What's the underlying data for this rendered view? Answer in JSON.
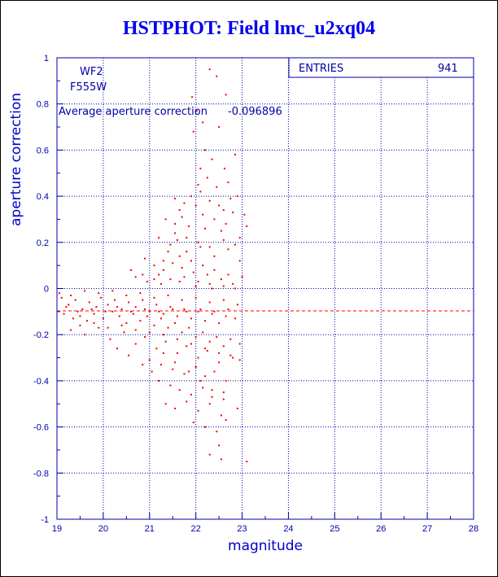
{
  "chart_data": {
    "type": "scatter",
    "title": "HSTPHOT: Field lmc_u2xq04",
    "xlabel": "magnitude",
    "ylabel": "aperture correction",
    "xlim": [
      19,
      28
    ],
    "ylim": [
      -1,
      1
    ],
    "xticks": [
      "19",
      "20",
      "21",
      "22",
      "23",
      "24",
      "25",
      "26",
      "27",
      "28"
    ],
    "yticks": [
      "1",
      "0.8",
      "0.6",
      "0.4",
      "0.2",
      "0",
      "-0.2",
      "-0.4",
      "-0.6",
      "-0.8",
      "-1"
    ],
    "grid": true,
    "annotations": {
      "chip": "WF2",
      "filter": "F555W",
      "average_label": "Average aperture correction",
      "average_value": "-0.096896"
    },
    "stats": {
      "entries_label": "ENTRIES",
      "entries_value": "941"
    },
    "average_line_y": -0.096896,
    "points": [
      [
        22.3,
        0.95
      ],
      [
        22.45,
        0.92
      ],
      [
        22.65,
        0.84
      ],
      [
        21.92,
        0.83
      ],
      [
        22.02,
        0.77
      ],
      [
        22.15,
        0.72
      ],
      [
        21.95,
        0.68
      ],
      [
        22.5,
        0.7
      ],
      [
        22.2,
        0.6
      ],
      [
        22.35,
        0.56
      ],
      [
        22.1,
        0.52
      ],
      [
        22.62,
        0.52
      ],
      [
        22.85,
        0.58
      ],
      [
        22.05,
        0.45
      ],
      [
        22.25,
        0.48
      ],
      [
        22.45,
        0.44
      ],
      [
        22.7,
        0.46
      ],
      [
        22.9,
        0.4
      ],
      [
        21.55,
        0.39
      ],
      [
        21.75,
        0.37
      ],
      [
        22.0,
        0.36
      ],
      [
        22.6,
        0.34
      ],
      [
        22.8,
        0.33
      ],
      [
        23.05,
        0.32
      ],
      [
        21.35,
        0.3
      ],
      [
        21.55,
        0.28
      ],
      [
        21.7,
        0.31
      ],
      [
        21.85,
        0.27
      ],
      [
        22.2,
        0.26
      ],
      [
        22.55,
        0.25
      ],
      [
        22.95,
        0.22
      ],
      [
        23.1,
        0.27
      ],
      [
        21.2,
        0.22
      ],
      [
        21.45,
        0.19
      ],
      [
        21.6,
        0.21
      ],
      [
        21.8,
        0.16
      ],
      [
        22.1,
        0.18
      ],
      [
        22.4,
        0.14
      ],
      [
        22.7,
        0.17
      ],
      [
        22.95,
        0.12
      ],
      [
        23.0,
        0.05
      ],
      [
        20.9,
        0.13
      ],
      [
        21.1,
        0.1
      ],
      [
        21.3,
        0.08
      ],
      [
        21.5,
        0.11
      ],
      [
        21.7,
        0.09
      ],
      [
        21.95,
        0.07
      ],
      [
        22.25,
        0.06
      ],
      [
        22.55,
        0.04
      ],
      [
        22.8,
        0.02
      ],
      [
        20.7,
        0.05
      ],
      [
        20.95,
        0.03
      ],
      [
        21.25,
        0.02
      ],
      [
        21.65,
        0.03
      ],
      [
        22.0,
        0.01
      ],
      [
        22.35,
        0.0
      ],
      [
        19.1,
        -0.04
      ],
      [
        19.25,
        -0.07
      ],
      [
        19.4,
        -0.05
      ],
      [
        19.55,
        -0.09
      ],
      [
        19.7,
        -0.06
      ],
      [
        19.85,
        -0.08
      ],
      [
        19.95,
        -0.04
      ],
      [
        20.1,
        -0.07
      ],
      [
        20.25,
        -0.05
      ],
      [
        20.4,
        -0.09
      ],
      [
        20.55,
        -0.06
      ],
      [
        20.7,
        -0.08
      ],
      [
        20.85,
        -0.05
      ],
      [
        21.0,
        -0.1
      ],
      [
        21.15,
        -0.07
      ],
      [
        21.3,
        -0.11
      ],
      [
        21.45,
        -0.08
      ],
      [
        21.6,
        -0.12
      ],
      [
        21.75,
        -0.09
      ],
      [
        21.9,
        -0.13
      ],
      [
        22.05,
        -0.1
      ],
      [
        22.2,
        -0.14
      ],
      [
        22.35,
        -0.11
      ],
      [
        22.5,
        -0.15
      ],
      [
        22.65,
        -0.12
      ],
      [
        22.85,
        -0.13
      ],
      [
        19.15,
        -0.11
      ],
      [
        19.35,
        -0.13
      ],
      [
        19.5,
        -0.12
      ],
      [
        19.65,
        -0.14
      ],
      [
        19.8,
        -0.11
      ],
      [
        20.0,
        -0.13
      ],
      [
        20.2,
        -0.1
      ],
      [
        20.35,
        -0.12
      ],
      [
        20.5,
        -0.15
      ],
      [
        20.65,
        -0.11
      ],
      [
        20.8,
        -0.14
      ],
      [
        20.95,
        -0.12
      ],
      [
        21.1,
        -0.16
      ],
      [
        21.25,
        -0.13
      ],
      [
        21.4,
        -0.17
      ],
      [
        21.55,
        -0.15
      ],
      [
        21.7,
        -0.19
      ],
      [
        21.85,
        -0.17
      ],
      [
        22.0,
        -0.21
      ],
      [
        22.15,
        -0.19
      ],
      [
        22.3,
        -0.23
      ],
      [
        22.45,
        -0.21
      ],
      [
        22.6,
        -0.25
      ],
      [
        22.75,
        -0.22
      ],
      [
        22.95,
        -0.24
      ],
      [
        19.3,
        -0.18
      ],
      [
        19.6,
        -0.2
      ],
      [
        19.9,
        -0.17
      ],
      [
        20.15,
        -0.22
      ],
      [
        20.45,
        -0.19
      ],
      [
        20.7,
        -0.24
      ],
      [
        20.9,
        -0.21
      ],
      [
        21.15,
        -0.26
      ],
      [
        21.35,
        -0.23
      ],
      [
        21.6,
        -0.28
      ],
      [
        21.8,
        -0.25
      ],
      [
        22.05,
        -0.3
      ],
      [
        22.25,
        -0.27
      ],
      [
        22.5,
        -0.32
      ],
      [
        22.75,
        -0.29
      ],
      [
        22.95,
        -0.31
      ],
      [
        21.0,
        -0.31
      ],
      [
        21.25,
        -0.33
      ],
      [
        21.5,
        -0.35
      ],
      [
        21.75,
        -0.37
      ],
      [
        22.0,
        -0.34
      ],
      [
        22.2,
        -0.38
      ],
      [
        22.4,
        -0.36
      ],
      [
        22.65,
        -0.4
      ],
      [
        21.2,
        -0.4
      ],
      [
        21.45,
        -0.42
      ],
      [
        21.65,
        -0.44
      ],
      [
        21.9,
        -0.46
      ],
      [
        22.15,
        -0.43
      ],
      [
        22.35,
        -0.47
      ],
      [
        22.6,
        -0.45
      ],
      [
        21.35,
        -0.5
      ],
      [
        21.55,
        -0.52
      ],
      [
        21.8,
        -0.49
      ],
      [
        22.05,
        -0.53
      ],
      [
        22.3,
        -0.5
      ],
      [
        22.55,
        -0.55
      ],
      [
        21.95,
        -0.58
      ],
      [
        22.2,
        -0.6
      ],
      [
        22.45,
        -0.62
      ],
      [
        22.65,
        -0.57
      ],
      [
        22.5,
        -0.68
      ],
      [
        22.3,
        -0.72
      ],
      [
        22.55,
        -0.74
      ],
      [
        23.1,
        -0.75
      ],
      [
        19.2,
        -0.08
      ],
      [
        19.45,
        -0.1
      ],
      [
        19.75,
        -0.09
      ],
      [
        20.05,
        -0.1
      ],
      [
        20.3,
        -0.08
      ],
      [
        20.6,
        -0.1
      ],
      [
        20.9,
        -0.09
      ],
      [
        21.2,
        -0.1
      ],
      [
        21.5,
        -0.09
      ],
      [
        21.8,
        -0.1
      ],
      [
        22.1,
        -0.09
      ],
      [
        22.4,
        -0.1
      ],
      [
        22.7,
        -0.09
      ],
      [
        19.05,
        -0.02
      ],
      [
        19.3,
        -0.03
      ],
      [
        19.6,
        -0.01
      ],
      [
        19.9,
        -0.02
      ],
      [
        20.2,
        -0.01
      ],
      [
        20.5,
        -0.03
      ],
      [
        20.8,
        -0.02
      ],
      [
        21.1,
        -0.04
      ],
      [
        21.4,
        -0.03
      ],
      [
        21.7,
        -0.05
      ],
      [
        22.0,
        -0.04
      ],
      [
        22.3,
        -0.06
      ],
      [
        22.6,
        -0.05
      ],
      [
        22.9,
        -0.07
      ],
      [
        19.5,
        -0.16
      ],
      [
        19.8,
        -0.15
      ],
      [
        20.1,
        -0.17
      ],
      [
        20.4,
        -0.16
      ],
      [
        20.7,
        -0.18
      ],
      [
        21.0,
        -0.19
      ],
      [
        21.3,
        -0.2
      ],
      [
        21.6,
        -0.22
      ],
      [
        21.9,
        -0.24
      ],
      [
        22.2,
        -0.26
      ],
      [
        22.5,
        -0.28
      ],
      [
        22.8,
        -0.3
      ],
      [
        20.3,
        -0.26
      ],
      [
        20.55,
        -0.29
      ],
      [
        20.85,
        -0.33
      ],
      [
        21.05,
        -0.36
      ],
      [
        21.3,
        -0.28
      ],
      [
        21.55,
        -0.32
      ],
      [
        21.85,
        -0.36
      ],
      [
        22.1,
        -0.4
      ],
      [
        22.35,
        -0.44
      ],
      [
        22.6,
        -0.48
      ],
      [
        22.9,
        -0.52
      ],
      [
        21.4,
        0.16
      ],
      [
        21.65,
        0.14
      ],
      [
        21.9,
        0.12
      ],
      [
        22.15,
        0.1
      ],
      [
        22.4,
        0.08
      ],
      [
        22.7,
        0.06
      ],
      [
        21.2,
        0.06
      ],
      [
        21.45,
        0.04
      ],
      [
        21.75,
        0.05
      ],
      [
        22.05,
        0.03
      ],
      [
        22.3,
        0.02
      ],
      [
        22.6,
        0.01
      ],
      [
        22.85,
        0.0
      ],
      [
        20.6,
        0.08
      ],
      [
        20.85,
        0.06
      ],
      [
        21.1,
        0.04
      ],
      [
        21.3,
        0.12
      ],
      [
        21.55,
        0.24
      ],
      [
        21.8,
        0.22
      ],
      [
        22.05,
        0.2
      ],
      [
        22.3,
        0.18
      ],
      [
        22.6,
        0.21
      ],
      [
        22.85,
        0.19
      ],
      [
        22.15,
        0.32
      ],
      [
        22.4,
        0.3
      ],
      [
        22.65,
        0.28
      ],
      [
        21.65,
        0.34
      ],
      [
        21.9,
        0.4
      ],
      [
        22.1,
        0.42
      ],
      [
        22.3,
        0.38
      ],
      [
        22.5,
        0.36
      ],
      [
        22.75,
        0.39
      ]
    ]
  }
}
